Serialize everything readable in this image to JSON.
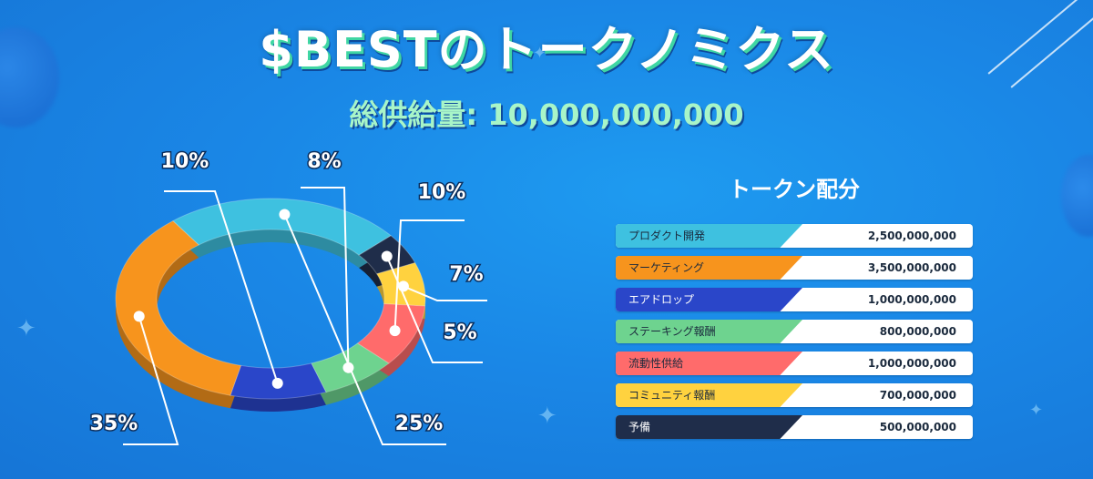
{
  "title": "$BESTのトークノミクス",
  "supply_label": "総供給量: 10,000,000,000",
  "allocation_title": "トークン配分",
  "chart_data": {
    "type": "pie",
    "style": "donut",
    "series": [
      {
        "label": "35%",
        "value": 35,
        "color": "#f7941d"
      },
      {
        "label": "25%",
        "value": 25,
        "color": "#3ec1e0"
      },
      {
        "label": "5%",
        "value": 5,
        "color": "#1f2d4a"
      },
      {
        "label": "7%",
        "value": 7,
        "color": "#ffd23f"
      },
      {
        "label": "10%",
        "value": 10,
        "color": "#ff6b6b"
      },
      {
        "label": "8%",
        "value": 8,
        "color": "#6ed38f"
      },
      {
        "label": "10%",
        "value": 10,
        "color": "#2a46c9"
      }
    ]
  },
  "allocation": [
    {
      "name": "プロダクト開発",
      "value": "2,500,000,000",
      "color": "#3ec1e0",
      "light": false
    },
    {
      "name": "マーケティング",
      "value": "3,500,000,000",
      "color": "#f7941d",
      "light": false
    },
    {
      "name": "エアドロップ",
      "value": "1,000,000,000",
      "color": "#2a46c9",
      "light": true
    },
    {
      "name": "ステーキング報酬",
      "value": "800,000,000",
      "color": "#6ed38f",
      "light": false
    },
    {
      "name": "流動性供給",
      "value": "1,000,000,000",
      "color": "#ff6b6b",
      "light": false
    },
    {
      "name": "コミュニティ報酬",
      "value": "700,000,000",
      "color": "#ffd23f",
      "light": false
    },
    {
      "name": "予備",
      "value": "500,000,000",
      "color": "#1f2d4a",
      "light": true
    }
  ]
}
